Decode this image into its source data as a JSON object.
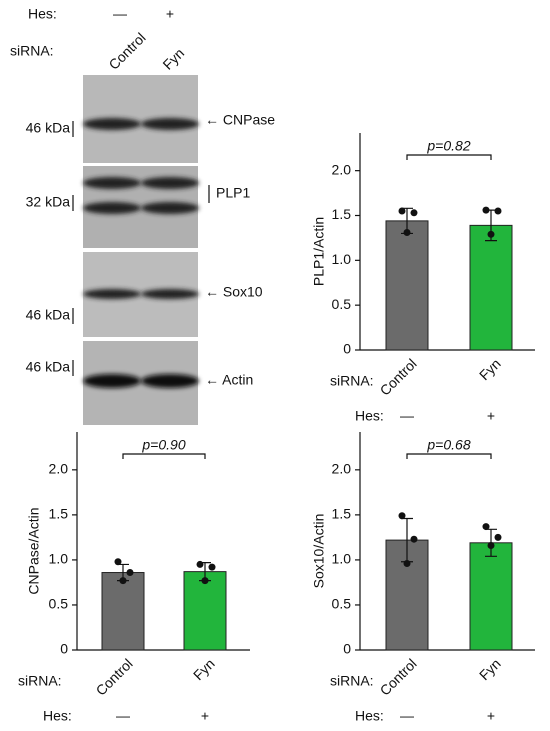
{
  "blot": {
    "hes_label": "Hes:",
    "hes": [
      "—",
      "+"
    ],
    "sirna_label": "siRNA:",
    "sirna": [
      "Control",
      "Fyn"
    ],
    "panels": [
      {
        "marker": "46 kDa",
        "label": "← CNPase"
      },
      {
        "marker": "32 kDa",
        "label": "PLP1"
      },
      {
        "marker": "46 kDa",
        "label": "← Sox10"
      },
      {
        "marker": "46 kDa",
        "label": "← Actin"
      }
    ]
  },
  "chart_data": [
    {
      "type": "bar",
      "ylabel": "PLP1/Actin",
      "annotation": "p=0.82",
      "row_labels": [
        "siRNA:",
        "Hes:"
      ],
      "categories": [
        "Control",
        "Fyn"
      ],
      "hes": [
        "—",
        "+"
      ],
      "values": [
        1.44,
        1.39
      ],
      "errors": [
        0.14,
        0.17
      ],
      "points": [
        [
          1.55,
          1.53,
          1.31
        ],
        [
          1.56,
          1.55,
          1.29
        ]
      ],
      "colors": [
        "#6b6b6b",
        "#22b53c"
      ],
      "ylim": [
        0,
        2.42
      ],
      "yticks": [
        0,
        0.5,
        {
          "value": 1,
          "label": "1.0"
        },
        1.5,
        {
          "value": 2,
          "label": "2.0"
        }
      ]
    },
    {
      "type": "bar",
      "ylabel": "CNPase/Actin",
      "annotation": "p=0.90",
      "row_labels": [
        "siRNA:",
        "Hes:"
      ],
      "categories": [
        "Control",
        "Fyn"
      ],
      "hes": [
        "—",
        "+"
      ],
      "values": [
        0.86,
        0.87
      ],
      "errors": [
        0.09,
        0.1
      ],
      "points": [
        [
          0.98,
          0.86,
          0.77
        ],
        [
          0.95,
          0.92,
          0.77
        ]
      ],
      "colors": [
        "#6b6b6b",
        "#22b53c"
      ],
      "ylim": [
        0,
        2.42
      ],
      "yticks": [
        0,
        0.5,
        {
          "value": 1,
          "label": "1.0"
        },
        1.5,
        {
          "value": 2,
          "label": "2.0"
        }
      ]
    },
    {
      "type": "bar",
      "ylabel": "Sox10/Actin",
      "annotation": "p=0.68",
      "row_labels": [
        "siRNA:",
        "Hes:"
      ],
      "categories": [
        "Control",
        "Fyn"
      ],
      "hes": [
        "—",
        "+"
      ],
      "values": [
        1.22,
        1.19
      ],
      "errors": [
        0.24,
        0.15
      ],
      "points": [
        [
          1.49,
          1.23,
          0.96
        ],
        [
          1.37,
          1.25,
          1.16
        ]
      ],
      "colors": [
        "#6b6b6b",
        "#22b53c"
      ],
      "ylim": [
        0,
        2.42
      ],
      "yticks": [
        0,
        0.5,
        {
          "value": 1,
          "label": "1.0"
        },
        1.5,
        {
          "value": 2,
          "label": "2.0"
        }
      ]
    }
  ]
}
